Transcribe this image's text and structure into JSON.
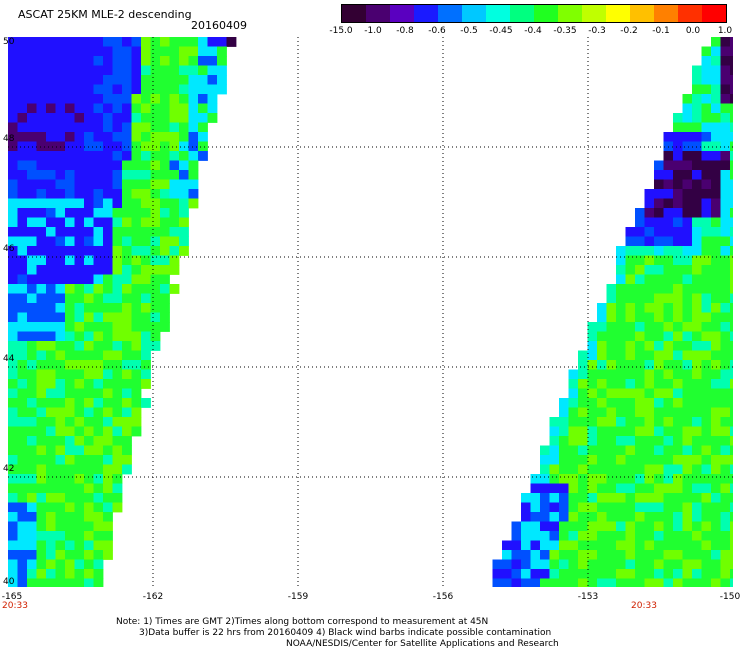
{
  "header": {
    "title": "ASCAT 25KM MLE-2 descending",
    "date": "20160409"
  },
  "colorbar": {
    "labels": [
      "-15.0",
      "-1.0",
      "-0.8",
      "-0.6",
      "-0.5",
      "-0.45",
      "-0.4",
      "-0.35",
      "-0.3",
      "-0.2",
      "-0.1",
      "0.0",
      "1.0"
    ],
    "colors": [
      "#330033",
      "#4a0070",
      "#5a00c0",
      "#1a1aff",
      "#0070ff",
      "#00c8ff",
      "#00ffe0",
      "#00ff80",
      "#20ff20",
      "#80ff00",
      "#c0ff00",
      "#ffff00",
      "#ffc000",
      "#ff8000",
      "#ff3000",
      "#ff0000"
    ]
  },
  "map": {
    "lon_range": [
      -165,
      -150
    ],
    "lat_range": [
      40,
      50
    ],
    "x_ticks": [
      "-165",
      "-162",
      "-159",
      "-156",
      "-153",
      "-150"
    ],
    "y_ticks": [
      "50",
      "48",
      "46",
      "44",
      "42",
      "40"
    ],
    "grid_lons": [
      -162,
      -159,
      -156,
      -153
    ],
    "grid_lats": [
      42,
      44,
      46,
      48
    ],
    "colors": {
      "dark_purple": "#330044",
      "purple": "#4a0070",
      "blue": "#2010ff",
      "blue2": "#0050ff",
      "cyan": "#00e8ff",
      "aqua": "#00ffb0",
      "green": "#20ff30",
      "lime": "#70ff00"
    }
  },
  "times": {
    "left": "20:33",
    "right": "20:33"
  },
  "notes": {
    "line1": "Note: 1) Times are GMT 2)Times along bottom correspond to measurement at 45N",
    "line2": "3)Data buffer is 22 hrs from 20160409 4) Black wind barbs indicate possible contamination",
    "line3": "NOAA/NESDIS/Center for Satellite Applications and Research"
  }
}
